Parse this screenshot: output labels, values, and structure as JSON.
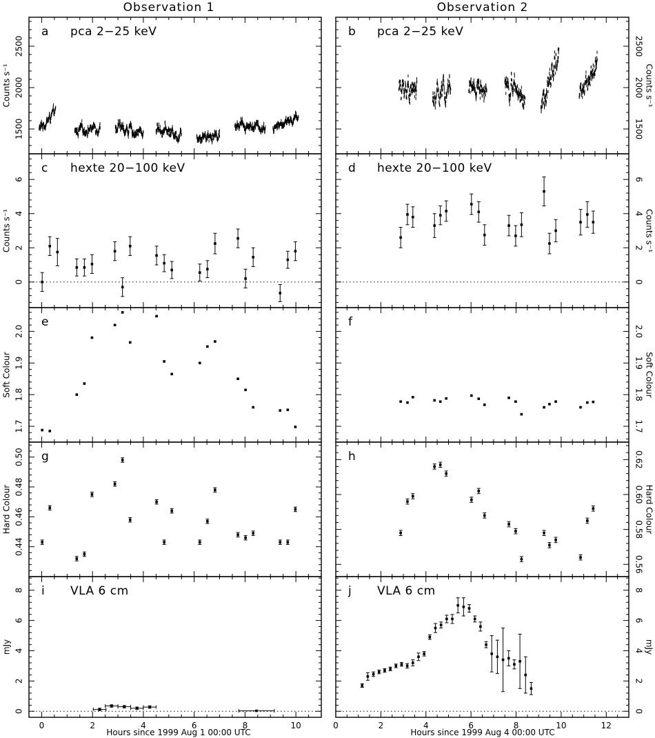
{
  "columns": [
    {
      "title": "Observation 1",
      "xlabel": "Hours since 1999 Aug 1 00:00 UTC"
    },
    {
      "title": "Observation 2",
      "xlabel": "Hours since 1999 Aug 4 00:00 UTC"
    }
  ],
  "chart_data": [
    {
      "id": "a",
      "label": "pca 2−25 keV",
      "type": "scatter",
      "column": 0,
      "row": 0,
      "ylabel": "Counts s⁻¹",
      "xlim": [
        -0.5,
        11
      ],
      "ylim": [
        1200,
        2850
      ],
      "yticks": [
        1500,
        2000,
        2500
      ],
      "yticks_fmt": 0,
      "zero_line": false,
      "dense": true,
      "segments": [
        {
          "x": [
            -0.1,
            0.55
          ],
          "base": [
            1500,
            1700
          ],
          "spread": 70
        },
        {
          "x": [
            1.3,
            2.3
          ],
          "base": [
            1470,
            1530
          ],
          "spread": 70
        },
        {
          "x": [
            2.9,
            4.0
          ],
          "base": [
            1520,
            1450
          ],
          "spread": 75
        },
        {
          "x": [
            4.5,
            5.5
          ],
          "base": [
            1520,
            1420
          ],
          "spread": 80
        },
        {
          "x": [
            6.1,
            7.0
          ],
          "base": [
            1430,
            1430
          ],
          "spread": 80
        },
        {
          "x": [
            7.6,
            8.8
          ],
          "base": [
            1560,
            1520
          ],
          "spread": 65
        },
        {
          "x": [
            9.1,
            10.1
          ],
          "base": [
            1510,
            1640
          ],
          "spread": 60
        }
      ]
    },
    {
      "id": "b",
      "label": "pca 2−25 keV",
      "type": "scatter",
      "column": 1,
      "row": 0,
      "ylabel": "Counts s⁻¹",
      "xlim": [
        0,
        13
      ],
      "ylim": [
        1200,
        2850
      ],
      "yticks": [
        1500,
        2000,
        2500
      ],
      "yticks_fmt": 0,
      "zero_line": false,
      "dense": true,
      "segments": [
        {
          "x": [
            2.8,
            3.6
          ],
          "base": [
            2000,
            1980
          ],
          "spread": 140
        },
        {
          "x": [
            4.3,
            5.1
          ],
          "base": [
            1830,
            2080
          ],
          "spread": 140
        },
        {
          "x": [
            5.9,
            6.7
          ],
          "base": [
            1990,
            2010
          ],
          "spread": 120
        },
        {
          "x": [
            7.5,
            8.4
          ],
          "base": [
            2080,
            1880
          ],
          "spread": 160
        },
        {
          "x": [
            9.1,
            9.9
          ],
          "base": [
            1700,
            2400
          ],
          "spread": 190
        },
        {
          "x": [
            10.8,
            11.6
          ],
          "base": [
            1950,
            2250
          ],
          "spread": 150
        }
      ]
    },
    {
      "id": "c",
      "label": "hexte 20−100 keV",
      "type": "scatter",
      "column": 0,
      "row": 1,
      "ylabel": "Counts s⁻¹",
      "xlim": [
        -0.5,
        11
      ],
      "ylim": [
        -1.5,
        7.5
      ],
      "yticks": [
        0,
        2,
        4,
        6
      ],
      "yticks_fmt": 0,
      "zero_line": true,
      "x": [
        0.02,
        0.32,
        0.62,
        1.38,
        1.68,
        1.98,
        2.88,
        3.18,
        3.48,
        4.52,
        4.82,
        5.12,
        6.22,
        6.52,
        6.82,
        7.72,
        8.02,
        8.32,
        9.38,
        9.68,
        9.98
      ],
      "y": [
        0.0,
        2.1,
        1.75,
        0.85,
        0.85,
        1.05,
        1.8,
        -0.3,
        2.1,
        1.55,
        1.1,
        0.7,
        0.55,
        0.75,
        2.25,
        2.55,
        0.2,
        1.45,
        -0.65,
        1.3,
        1.8
      ],
      "err": [
        0.55,
        0.55,
        0.8,
        0.5,
        0.5,
        0.55,
        0.55,
        0.55,
        0.55,
        0.55,
        0.5,
        0.5,
        0.5,
        0.5,
        0.6,
        0.55,
        0.55,
        0.55,
        0.5,
        0.5,
        0.55
      ]
    },
    {
      "id": "d",
      "label": "hexte 20−100 keV",
      "type": "scatter",
      "column": 1,
      "row": 1,
      "ylabel": "Counts s⁻¹",
      "xlim": [
        0,
        13
      ],
      "ylim": [
        -1.5,
        7.5
      ],
      "yticks": [
        0,
        2,
        4,
        6
      ],
      "yticks_fmt": 0,
      "zero_line": true,
      "x": [
        2.88,
        3.18,
        3.42,
        4.38,
        4.64,
        4.9,
        6.02,
        6.34,
        6.6,
        7.68,
        7.98,
        8.24,
        9.24,
        9.48,
        9.76,
        10.86,
        11.16,
        11.42
      ],
      "y": [
        2.6,
        3.95,
        3.8,
        3.3,
        3.9,
        4.15,
        4.55,
        4.1,
        2.75,
        3.3,
        2.7,
        3.35,
        5.3,
        2.25,
        3.0,
        3.5,
        3.95,
        3.5
      ],
      "err": [
        0.6,
        0.6,
        0.6,
        0.7,
        0.55,
        0.6,
        0.6,
        0.6,
        0.6,
        0.6,
        0.6,
        0.7,
        0.85,
        0.6,
        0.65,
        0.75,
        0.75,
        0.65
      ]
    },
    {
      "id": "e",
      "label": "",
      "type": "scatter",
      "column": 0,
      "row": 2,
      "ylabel": "Soft Colour",
      "xlim": [
        -0.5,
        11
      ],
      "ylim": [
        1.65,
        2.075
      ],
      "yticks": [
        1.7,
        1.8,
        1.9,
        2.0
      ],
      "yticks_fmt": 1,
      "zero_line": false,
      "x": [
        0.02,
        0.32,
        1.38,
        1.68,
        1.98,
        2.88,
        3.18,
        3.48,
        4.52,
        4.82,
        5.12,
        6.22,
        6.52,
        6.82,
        7.72,
        8.02,
        8.32,
        9.38,
        9.68,
        9.98
      ],
      "y": [
        1.688,
        1.685,
        1.8,
        1.835,
        1.98,
        2.02,
        2.06,
        1.965,
        2.048,
        1.905,
        1.865,
        1.9,
        1.952,
        1.968,
        1.85,
        1.815,
        1.76,
        1.75,
        1.752,
        1.698
      ],
      "err": [
        0.003,
        0.003,
        0.003,
        0.003,
        0.003,
        0.003,
        0.003,
        0.003,
        0.003,
        0.003,
        0.003,
        0.003,
        0.003,
        0.003,
        0.003,
        0.003,
        0.003,
        0.003,
        0.003,
        0.003
      ]
    },
    {
      "id": "f",
      "label": "",
      "type": "scatter",
      "column": 1,
      "row": 2,
      "ylabel": "Soft Colour",
      "xlim": [
        0,
        13
      ],
      "ylim": [
        1.65,
        2.075
      ],
      "yticks": [
        1.7,
        1.8,
        1.9,
        2.0
      ],
      "yticks_fmt": 1,
      "zero_line": false,
      "x": [
        2.88,
        3.18,
        3.42,
        4.38,
        4.64,
        4.9,
        6.02,
        6.34,
        6.6,
        7.68,
        7.98,
        8.24,
        9.24,
        9.48,
        9.76,
        10.86,
        11.16,
        11.42
      ],
      "y": [
        1.778,
        1.775,
        1.792,
        1.782,
        1.778,
        1.788,
        1.797,
        1.787,
        1.768,
        1.79,
        1.778,
        1.738,
        1.76,
        1.77,
        1.778,
        1.76,
        1.775,
        1.777
      ],
      "err": [
        0.003,
        0.003,
        0.003,
        0.003,
        0.003,
        0.003,
        0.003,
        0.003,
        0.003,
        0.003,
        0.003,
        0.003,
        0.003,
        0.003,
        0.003,
        0.003,
        0.003,
        0.003
      ]
    },
    {
      "id": "g",
      "label": "",
      "type": "scatter",
      "column": 0,
      "row": 3,
      "ylabel": "Hard Colour",
      "xlim": [
        -0.5,
        11
      ],
      "ylim": [
        0.42,
        0.51
      ],
      "yticks": [
        0.44,
        0.46,
        0.48,
        0.5
      ],
      "yticks_fmt": 2,
      "zero_line": false,
      "x": [
        0.02,
        0.32,
        1.38,
        1.68,
        1.98,
        2.88,
        3.18,
        3.48,
        4.52,
        4.82,
        5.12,
        6.22,
        6.52,
        6.82,
        7.72,
        8.02,
        8.32,
        9.38,
        9.68,
        9.98
      ],
      "y": [
        0.443,
        0.466,
        0.432,
        0.435,
        0.475,
        0.482,
        0.498,
        0.458,
        0.47,
        0.443,
        0.464,
        0.443,
        0.457,
        0.478,
        0.448,
        0.446,
        0.449,
        0.443,
        0.443,
        0.465
      ],
      "err": [
        0.0015,
        0.0015,
        0.0015,
        0.0015,
        0.0015,
        0.0015,
        0.0015,
        0.0015,
        0.0015,
        0.0015,
        0.0015,
        0.0015,
        0.0015,
        0.0015,
        0.0015,
        0.0015,
        0.0015,
        0.0015,
        0.0015,
        0.0015
      ]
    },
    {
      "id": "h",
      "label": "",
      "type": "scatter",
      "column": 1,
      "row": 3,
      "ylabel": "Hard Colour",
      "xlim": [
        0,
        13
      ],
      "ylim": [
        0.553,
        0.63
      ],
      "yticks": [
        0.56,
        0.58,
        0.6,
        0.62
      ],
      "yticks_fmt": 2,
      "zero_line": false,
      "x": [
        2.88,
        3.18,
        3.42,
        4.38,
        4.64,
        4.9,
        6.02,
        6.34,
        6.6,
        7.68,
        7.98,
        8.24,
        9.24,
        9.48,
        9.76,
        10.86,
        11.16,
        11.42
      ],
      "y": [
        0.578,
        0.596,
        0.599,
        0.616,
        0.617,
        0.612,
        0.597,
        0.602,
        0.588,
        0.583,
        0.579,
        0.563,
        0.578,
        0.571,
        0.574,
        0.564,
        0.585,
        0.592
      ],
      "err": [
        0.0015,
        0.0015,
        0.0015,
        0.0015,
        0.0015,
        0.0015,
        0.0015,
        0.0015,
        0.0015,
        0.0015,
        0.0015,
        0.0015,
        0.0015,
        0.0015,
        0.0015,
        0.0015,
        0.0015,
        0.0015
      ]
    },
    {
      "id": "i",
      "label": "VLA 6 cm",
      "type": "scatter",
      "column": 0,
      "row": 4,
      "ylabel": "mJy",
      "xlim": [
        -0.5,
        11
      ],
      "ylim": [
        -0.4,
        8.9
      ],
      "yticks": [
        0,
        2,
        4,
        6,
        8
      ],
      "yticks_fmt": 0,
      "zero_line": true,
      "xticks": [
        0,
        2,
        4,
        6,
        8,
        10
      ],
      "x": [
        2.28,
        2.75,
        3.25,
        3.75,
        4.25,
        8.45
      ],
      "y": [
        0.12,
        0.35,
        0.3,
        0.2,
        0.28,
        0.03
      ],
      "err": [
        0.08,
        0.08,
        0.08,
        0.08,
        0.08,
        0.05
      ],
      "xerr": [
        0.25,
        0.25,
        0.25,
        0.25,
        0.25,
        0.7
      ]
    },
    {
      "id": "j",
      "label": "VLA 6 cm",
      "type": "scatter",
      "column": 1,
      "row": 4,
      "ylabel": "mJy",
      "xlim": [
        0,
        13
      ],
      "ylim": [
        -0.4,
        8.9
      ],
      "yticks": [
        0,
        2,
        4,
        6,
        8
      ],
      "yticks_fmt": 0,
      "zero_line": true,
      "xticks": [
        0,
        2,
        4,
        6,
        8,
        10,
        12
      ],
      "x": [
        1.17,
        1.42,
        1.67,
        1.92,
        2.17,
        2.42,
        2.67,
        2.92,
        3.17,
        3.42,
        3.67,
        3.92,
        4.17,
        4.42,
        4.67,
        4.92,
        5.17,
        5.42,
        5.67,
        5.92,
        6.17,
        6.42,
        6.67,
        6.92,
        7.17,
        7.42,
        7.67,
        7.92,
        8.17,
        8.42,
        8.67
      ],
      "y": [
        1.7,
        2.3,
        2.45,
        2.6,
        2.7,
        2.8,
        3.0,
        3.1,
        3.0,
        3.2,
        3.6,
        3.8,
        4.9,
        5.5,
        5.7,
        6.1,
        6.1,
        7.0,
        6.9,
        6.8,
        6.1,
        5.6,
        4.4,
        3.8,
        3.6,
        3.4,
        3.5,
        3.1,
        3.3,
        2.4,
        1.5
      ],
      "err": [
        0.12,
        0.25,
        0.15,
        0.12,
        0.12,
        0.12,
        0.12,
        0.12,
        0.15,
        0.2,
        0.25,
        0.15,
        0.15,
        0.3,
        0.2,
        0.25,
        0.3,
        0.5,
        0.6,
        0.25,
        0.2,
        0.3,
        0.2,
        1.2,
        1.1,
        2.1,
        0.5,
        0.3,
        1.8,
        1.2,
        0.4
      ]
    }
  ]
}
